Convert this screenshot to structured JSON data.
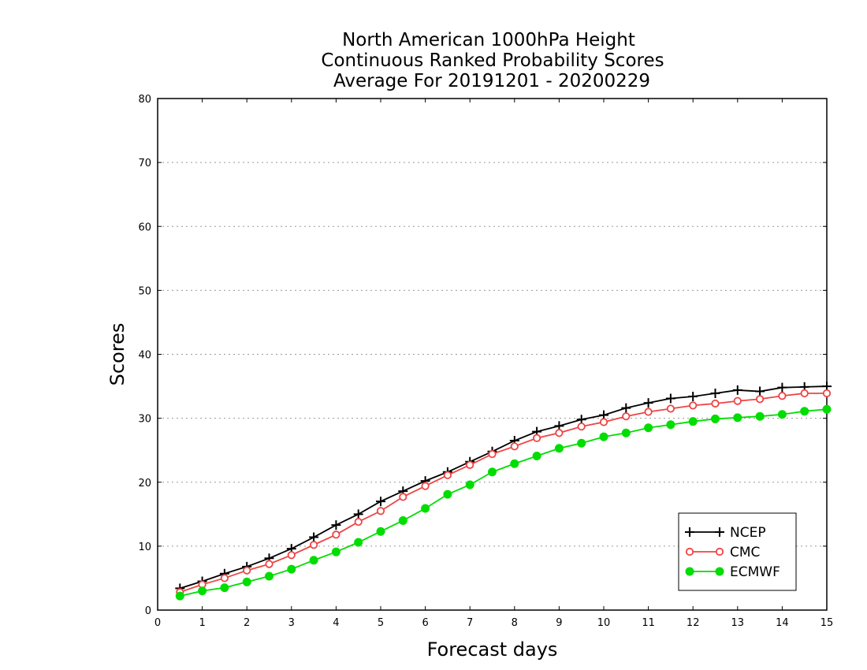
{
  "chart_data": {
    "type": "line",
    "title": [
      "North American 1000hPa Height",
      "Continuous Ranked Probability Scores",
      "Average For 20191201 - 20200229"
    ],
    "xlabel": "Forecast days",
    "ylabel": "Scores",
    "xlim": [
      0,
      15
    ],
    "ylim": [
      0,
      80
    ],
    "xticks": [
      "0",
      "1",
      "2",
      "3",
      "4",
      "5",
      "6",
      "7",
      "8",
      "9",
      "10",
      "11",
      "12",
      "13",
      "14",
      "15"
    ],
    "yticks": [
      "0",
      "10",
      "20",
      "30",
      "40",
      "50",
      "60",
      "70",
      "80"
    ],
    "grid": "horizontal-dotted",
    "legend_position": "bottom-right",
    "x": [
      0.5,
      1,
      1.5,
      2,
      2.5,
      3,
      3.5,
      4,
      4.5,
      5,
      5.5,
      6,
      6.5,
      7,
      7.5,
      8,
      8.5,
      9,
      9.5,
      10,
      10.5,
      11,
      11.5,
      12,
      12.5,
      13,
      13.5,
      14,
      14.5,
      15
    ],
    "series": [
      {
        "name": "NCEP",
        "color": "#000000",
        "marker": "plus",
        "values": [
          3.4,
          4.5,
          5.7,
          6.8,
          8.1,
          9.6,
          11.4,
          13.3,
          15.0,
          17.0,
          18.6,
          20.2,
          21.6,
          23.2,
          24.8,
          26.5,
          27.9,
          28.8,
          29.8,
          30.5,
          31.6,
          32.4,
          33.1,
          33.4,
          33.9,
          34.4,
          34.2,
          34.8,
          34.9,
          35.0
        ]
      },
      {
        "name": "CMC",
        "color": "#ee4444",
        "marker": "open-circle",
        "values": [
          2.8,
          4.0,
          5.0,
          6.2,
          7.2,
          8.6,
          10.2,
          11.8,
          13.8,
          15.5,
          17.7,
          19.4,
          21.1,
          22.7,
          24.4,
          25.6,
          26.9,
          27.7,
          28.7,
          29.4,
          30.3,
          31.0,
          31.5,
          32.0,
          32.3,
          32.7,
          33.0,
          33.5,
          33.9,
          33.9
        ]
      },
      {
        "name": "ECMWF",
        "color": "#00dd00",
        "marker": "filled-circle",
        "values": [
          2.2,
          3.0,
          3.5,
          4.4,
          5.3,
          6.4,
          7.8,
          9.1,
          10.6,
          12.3,
          14.0,
          15.9,
          18.1,
          19.6,
          21.6,
          22.9,
          24.1,
          25.3,
          26.1,
          27.1,
          27.7,
          28.5,
          29.0,
          29.5,
          29.9,
          30.1,
          30.3,
          30.6,
          31.1,
          31.4
        ]
      }
    ]
  }
}
